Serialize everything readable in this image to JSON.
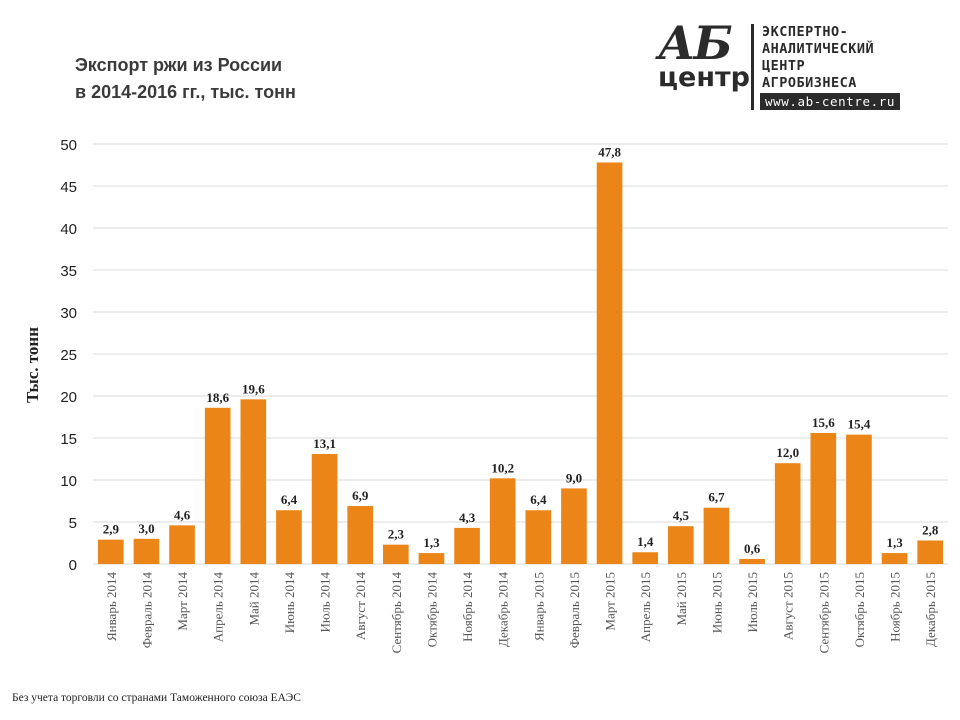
{
  "title": {
    "line1": "Экспорт ржи из России",
    "line2": "в 2014-2016 гг., тыс. тонн"
  },
  "logo": {
    "mark_top": "АБ",
    "mark_bottom": "центр",
    "line1": "ЭКСПЕРТНО-",
    "line2": "АНАЛИТИЧЕСКИЙ",
    "line3": "ЦЕНТР",
    "line4": "АГРОБИЗНЕСА",
    "url": "www.ab-centre.ru"
  },
  "footnote": "Без учета торговли со странами Таможенного союза ЕАЭС",
  "colors": {
    "bar": "#EB8517",
    "grid": "#D9D9D9",
    "text": "#222222"
  },
  "chart_data": {
    "type": "bar",
    "title": "Экспорт ржи из России в 2014-2016 гг., тыс. тонн",
    "xlabel": "",
    "ylabel": "Тыс. тонн",
    "ylim": [
      0,
      50
    ],
    "yticks": [
      0,
      5,
      10,
      15,
      20,
      25,
      30,
      35,
      40,
      45,
      50
    ],
    "grid": true,
    "categories": [
      "Январь 2014",
      "Февраль 2014",
      "Март 2014",
      "Апрель 2014",
      "Май 2014",
      "Июнь 2014",
      "Июль 2014",
      "Август 2014",
      "Сентябрь 2014",
      "Октябрь 2014",
      "Ноябрь 2014",
      "Декабрь 2014",
      "Январь 2015",
      "Февраль 2015",
      "Март 2015",
      "Апрель 2015",
      "Май 2015",
      "Июнь 2015",
      "Июль 2015",
      "Август 2015",
      "Сентябрь 2015",
      "Октябрь 2015",
      "Ноябрь 2015",
      "Декабрь 2015"
    ],
    "values": [
      2.9,
      3.0,
      4.6,
      18.6,
      19.6,
      6.4,
      13.1,
      6.9,
      2.3,
      1.3,
      4.3,
      10.2,
      6.4,
      9.0,
      47.8,
      1.4,
      4.5,
      6.7,
      0.6,
      12.0,
      15.6,
      15.4,
      1.3,
      2.8
    ],
    "labels": [
      "2,9",
      "3,0",
      "4,6",
      "18,6",
      "19,6",
      "6,4",
      "13,1",
      "6,9",
      "2,3",
      "1,3",
      "4,3",
      "10,2",
      "6,4",
      "9,0",
      "47,8",
      "1,4",
      "4,5",
      "6,7",
      "0,6",
      "12,0",
      "15,6",
      "15,4",
      "1,3",
      "2,8"
    ]
  }
}
